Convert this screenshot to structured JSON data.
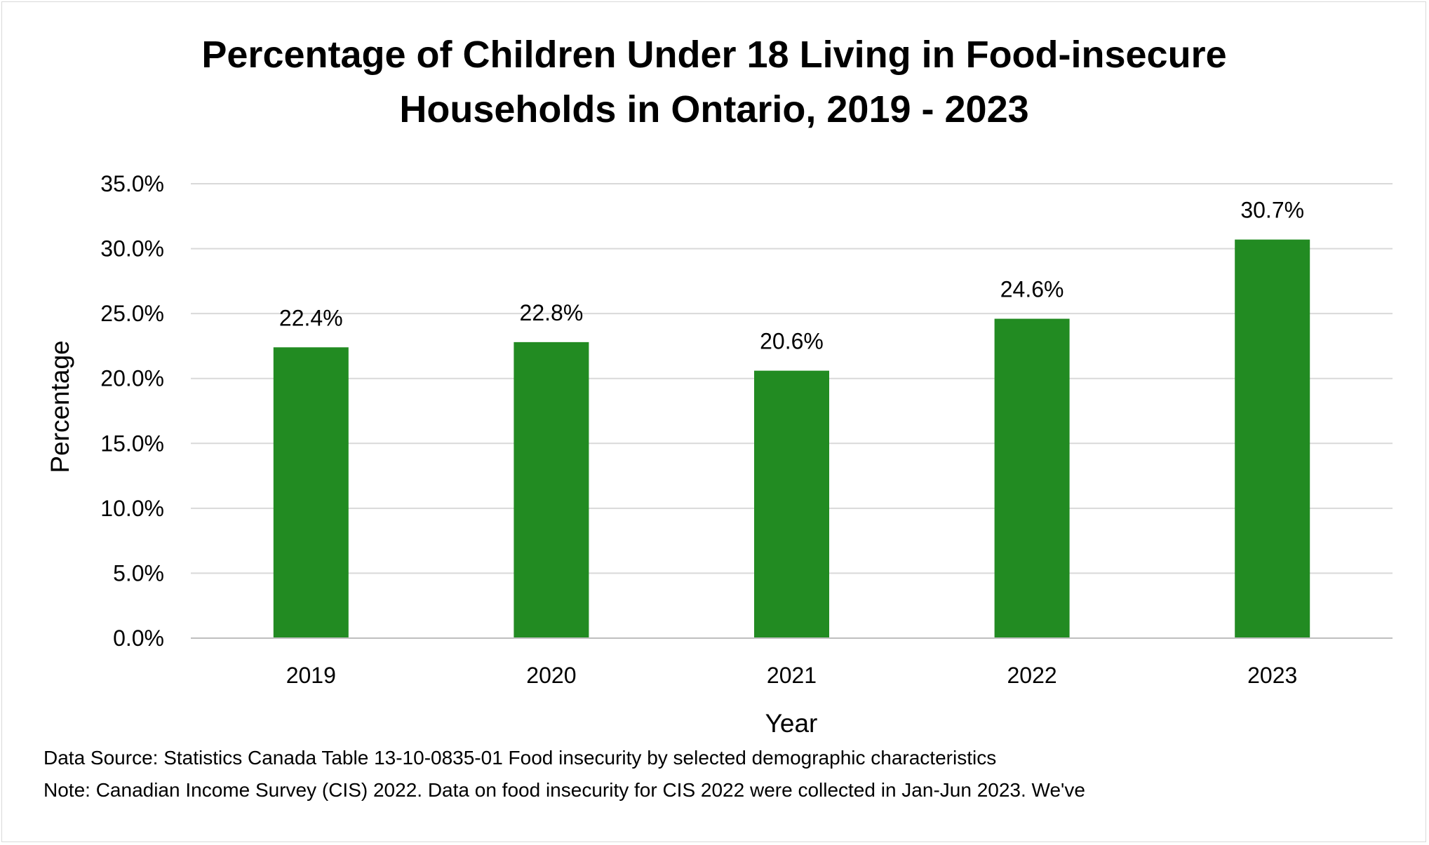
{
  "chart_data": {
    "type": "bar",
    "title": [
      "Percentage of Children Under 18 Living in Food-insecure",
      "Households in Ontario, 2019 - 2023"
    ],
    "xlabel": "Year",
    "ylabel": "Percentage",
    "categories": [
      "2019",
      "2020",
      "2021",
      "2022",
      "2023"
    ],
    "series": [
      {
        "name": "Percentage",
        "values": [
          22.4,
          22.8,
          20.6,
          24.6,
          30.7
        ],
        "labels": [
          "22.4%",
          "22.8%",
          "20.6%",
          "24.6%",
          "30.7%"
        ],
        "color": "#228B22"
      }
    ],
    "ylim": [
      0,
      35
    ],
    "yticks": [
      0,
      5,
      10,
      15,
      20,
      25,
      30,
      35
    ],
    "ytick_labels": [
      "0.0%",
      "5.0%",
      "10.0%",
      "15.0%",
      "20.0%",
      "25.0%",
      "30.0%",
      "35.0%"
    ],
    "grid": true,
    "legend": "none"
  },
  "notes": {
    "source": "Data Source: Statistics Canada Table 13-10-0835-01 Food insecurity by selected demographic characteristics",
    "note": "Note: Canadian Income Survey (CIS) 2022. Data on food insecurity for CIS 2022 were collected in Jan-Jun 2023. We've"
  },
  "colors": {
    "bar": "#228B22",
    "gridline": "#d9d9d9",
    "axis": "#bfbfbf",
    "border": "#d9d9d9"
  }
}
